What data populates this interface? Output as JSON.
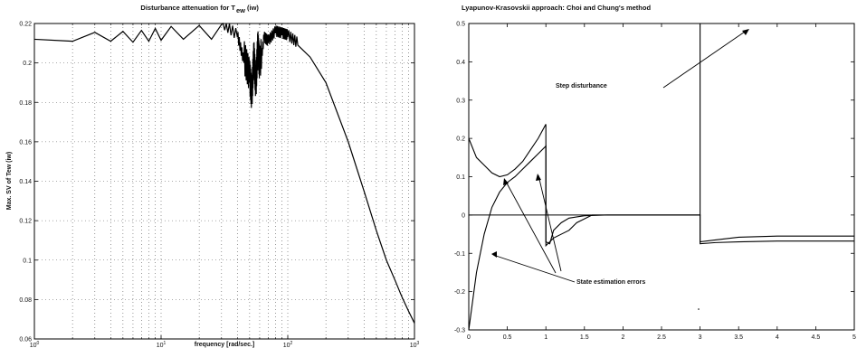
{
  "chart_data": [
    {
      "type": "line",
      "title": "Disturbance attenuation for T",
      "title_sub": "ew",
      "title_suffix": "(iw)",
      "xlabel": "frequency [rad/sec.]",
      "ylabel": "Max. SV of Tew (iw)",
      "xscale": "log",
      "xlim": [
        1,
        1000
      ],
      "ylim": [
        0.06,
        0.22
      ],
      "grid": true,
      "y_ticks": [
        "0.06",
        "0.08",
        "0.1",
        "0.12",
        "0.14",
        "0.16",
        "0.18",
        "0.2",
        "0.22"
      ],
      "x_ticks": [
        {
          "base": "10",
          "exp": "0"
        },
        {
          "base": "10",
          "exp": "1"
        },
        {
          "base": "10",
          "exp": "2"
        },
        {
          "base": "10",
          "exp": "3"
        }
      ],
      "series": [
        {
          "x": [
            1,
            2,
            3,
            4,
            5,
            6,
            7,
            8,
            9,
            10,
            12,
            15,
            20,
            25,
            30,
            40,
            45,
            50,
            52,
            54,
            56,
            58,
            60,
            65,
            70,
            80,
            90,
            100,
            120,
            150,
            200,
            300,
            400,
            500,
            600,
            700,
            800,
            900,
            1000
          ],
          "y": [
            0.212,
            0.211,
            0.2155,
            0.211,
            0.216,
            0.2105,
            0.2165,
            0.211,
            0.2175,
            0.2115,
            0.2185,
            0.212,
            0.219,
            0.212,
            0.2195,
            0.213,
            0.2,
            0.19,
            0.18,
            0.2,
            0.185,
            0.205,
            0.195,
            0.212,
            0.21,
            0.215,
            0.214,
            0.213,
            0.209,
            0.203,
            0.19,
            0.16,
            0.135,
            0.115,
            0.1,
            0.09,
            0.081,
            0.074,
            0.068
          ]
        }
      ]
    },
    {
      "type": "line",
      "title": "Lyapunov-Krasovskii approach: Choi and Chung's method",
      "xlabel": "",
      "ylabel": "",
      "xlim": [
        0,
        5
      ],
      "ylim": [
        -0.3,
        0.5
      ],
      "grid": false,
      "x_ticks": [
        "0",
        "0.5",
        "1",
        "1.5",
        "2",
        "2.5",
        "3",
        "3.5",
        "4",
        "4.5",
        "5"
      ],
      "y_ticks": [
        "-0.3",
        "-0.2",
        "-0.1",
        "0",
        "0.1",
        "0.2",
        "0.3",
        "0.4",
        "0.5"
      ],
      "series": [
        {
          "x": [
            0,
            1,
            1,
            3,
            3,
            5
          ],
          "y": [
            0,
            0,
            0,
            0,
            0.5,
            0.5
          ]
        },
        {
          "x": [
            0,
            0.1,
            0.2,
            0.3,
            0.4,
            0.5,
            0.6,
            0.7,
            0.8,
            0.9,
            1.0,
            1.0,
            1.1,
            1.2,
            1.3,
            1.4,
            1.5,
            1.6,
            1.8,
            3.0,
            3.0,
            3.2,
            3.5,
            4.0,
            5.0
          ],
          "y": [
            0.2,
            0.15,
            0.13,
            0.11,
            0.1,
            0.105,
            0.12,
            0.14,
            0.17,
            0.2,
            0.237,
            -0.08,
            -0.06,
            -0.05,
            -0.04,
            -0.02,
            -0.01,
            0,
            0,
            0,
            -0.07,
            -0.065,
            -0.058,
            -0.055,
            -0.055
          ]
        },
        {
          "x": [
            0,
            0.1,
            0.2,
            0.3,
            0.4,
            0.5,
            0.6,
            0.7,
            0.8,
            0.9,
            1.0,
            1.0,
            1.05,
            1.1,
            1.2,
            1.3,
            1.5,
            1.8,
            3.0,
            3.0,
            3.2,
            3.5,
            4.0,
            5.0
          ],
          "y": [
            -0.3,
            -0.15,
            -0.05,
            0.02,
            0.06,
            0.085,
            0.1,
            0.12,
            0.14,
            0.16,
            0.18,
            -0.07,
            -0.075,
            -0.04,
            -0.02,
            -0.008,
            -0.002,
            0,
            0,
            -0.075,
            -0.072,
            -0.07,
            -0.068,
            -0.068
          ]
        }
      ],
      "annotations": [
        {
          "text": "Step disturbance"
        },
        {
          "text": "State estimation errors"
        }
      ]
    }
  ]
}
